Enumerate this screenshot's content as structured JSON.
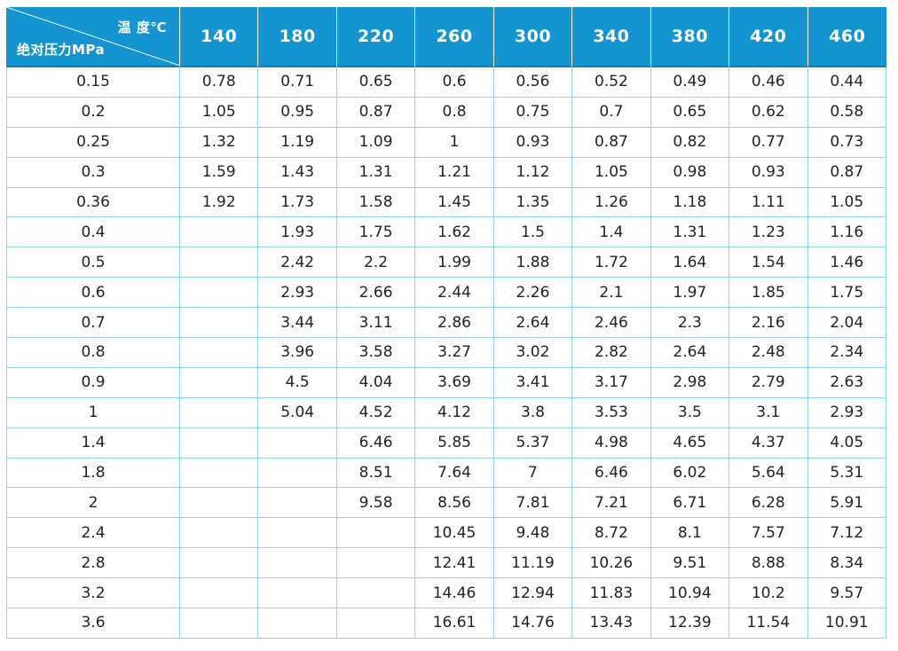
{
  "header": {
    "corner_top": "温 度℃",
    "corner_bottom": "绝对压力MPa",
    "temperatures": [
      "140",
      "180",
      "220",
      "260",
      "300",
      "340",
      "380",
      "420",
      "460"
    ]
  },
  "rows": [
    {
      "pressure": "0.15",
      "values": [
        "0.78",
        "0.71",
        "0.65",
        "0.6",
        "0.56",
        "0.52",
        "0.49",
        "0.46",
        "0.44"
      ]
    },
    {
      "pressure": "0.2",
      "values": [
        "1.05",
        "0.95",
        "0.87",
        "0.8",
        "0.75",
        "0.7",
        "0.65",
        "0.62",
        "0.58"
      ]
    },
    {
      "pressure": "0.25",
      "values": [
        "1.32",
        "1.19",
        "1.09",
        "1",
        "0.93",
        "0.87",
        "0.82",
        "0.77",
        "0.73"
      ]
    },
    {
      "pressure": "0.3",
      "values": [
        "1.59",
        "1.43",
        "1.31",
        "1.21",
        "1.12",
        "1.05",
        "0.98",
        "0.93",
        "0.87"
      ]
    },
    {
      "pressure": "0.36",
      "values": [
        "1.92",
        "1.73",
        "1.58",
        "1.45",
        "1.35",
        "1.26",
        "1.18",
        "1.11",
        "1.05"
      ]
    },
    {
      "pressure": "0.4",
      "values": [
        "",
        "1.93",
        "1.75",
        "1.62",
        "1.5",
        "1.4",
        "1.31",
        "1.23",
        "1.16"
      ]
    },
    {
      "pressure": "0.5",
      "values": [
        "",
        "2.42",
        "2.2",
        "1.99",
        "1.88",
        "1.72",
        "1.64",
        "1.54",
        "1.46"
      ]
    },
    {
      "pressure": "0.6",
      "values": [
        "",
        "2.93",
        "2.66",
        "2.44",
        "2.26",
        "2.1",
        "1.97",
        "1.85",
        "1.75"
      ]
    },
    {
      "pressure": "0.7",
      "values": [
        "",
        "3.44",
        "3.11",
        "2.86",
        "2.64",
        "2.46",
        "2.3",
        "2.16",
        "2.04"
      ]
    },
    {
      "pressure": "0.8",
      "values": [
        "",
        "3.96",
        "3.58",
        "3.27",
        "3.02",
        "2.82",
        "2.64",
        "2.48",
        "2.34"
      ]
    },
    {
      "pressure": "0.9",
      "values": [
        "",
        "4.5",
        "4.04",
        "3.69",
        "3.41",
        "3.17",
        "2.98",
        "2.79",
        "2.63"
      ]
    },
    {
      "pressure": "1",
      "values": [
        "",
        "5.04",
        "4.52",
        "4.12",
        "3.8",
        "3.53",
        "3.5",
        "3.1",
        "2.93"
      ]
    },
    {
      "pressure": "1.4",
      "values": [
        "",
        "",
        "6.46",
        "5.85",
        "5.37",
        "4.98",
        "4.65",
        "4.37",
        "4.05"
      ]
    },
    {
      "pressure": "1.8",
      "values": [
        "",
        "",
        "8.51",
        "7.64",
        "7",
        "6.46",
        "6.02",
        "5.64",
        "5.31"
      ]
    },
    {
      "pressure": "2",
      "values": [
        "",
        "",
        "9.58",
        "8.56",
        "7.81",
        "7.21",
        "6.71",
        "6.28",
        "5.91"
      ]
    },
    {
      "pressure": "2.4",
      "values": [
        "",
        "",
        "",
        "10.45",
        "9.48",
        "8.72",
        "8.1",
        "7.57",
        "7.12"
      ]
    },
    {
      "pressure": "2.8",
      "values": [
        "",
        "",
        "",
        "12.41",
        "11.19",
        "10.26",
        "9.51",
        "8.88",
        "8.34"
      ]
    },
    {
      "pressure": "3.2",
      "values": [
        "",
        "",
        "",
        "14.46",
        "12.94",
        "11.83",
        "10.94",
        "10.2",
        "9.57"
      ]
    },
    {
      "pressure": "3.6",
      "values": [
        "",
        "",
        "",
        "16.61",
        "14.76",
        "13.43",
        "12.39",
        "11.54",
        "10.91"
      ]
    }
  ],
  "colors": {
    "header_bg": "#1594d2",
    "header_text": "#ffffff",
    "grid_line": "#8dd3f2",
    "cell_text": "#222222"
  }
}
